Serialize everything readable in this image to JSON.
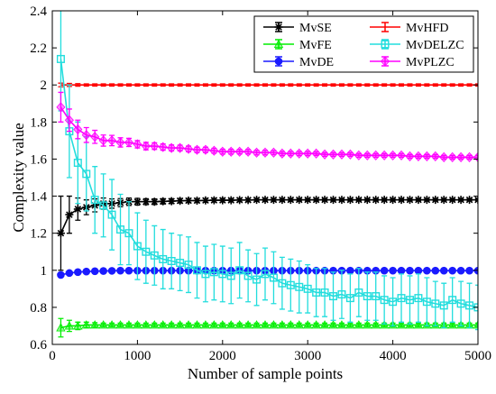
{
  "chart_data": {
    "type": "line",
    "title": "",
    "xlabel": "Number of sample points",
    "ylabel": "Complexity value",
    "xlim": [
      0,
      5000
    ],
    "ylim": [
      0.6,
      2.4
    ],
    "xticks": [
      0,
      1000,
      2000,
      3000,
      4000,
      5000
    ],
    "xtick_labels": [
      "0",
      "1000",
      "2000",
      "3000",
      "4000",
      "5000"
    ],
    "yticks": [
      0.6,
      0.8,
      1.0,
      1.2,
      1.4,
      1.6,
      1.8,
      2.0,
      2.2,
      2.4
    ],
    "ytick_labels": [
      "0.6",
      "0.8",
      "1",
      "1.2",
      "1.4",
      "1.6",
      "1.8",
      "2",
      "2.2",
      "2.4"
    ],
    "grid": false,
    "legend": "top-right",
    "error_bars": true,
    "x_start": 100,
    "x_step": 100,
    "series": [
      {
        "name": "MvSE",
        "color": "#000000",
        "marker": "star",
        "values": [
          1.2,
          1.3,
          1.33,
          1.34,
          1.35,
          1.36,
          1.36,
          1.365,
          1.37,
          1.37,
          1.37,
          1.37,
          1.372,
          1.373,
          1.375,
          1.376,
          1.376,
          1.377,
          1.378,
          1.378,
          1.378,
          1.379,
          1.379,
          1.38,
          1.38,
          1.38,
          1.38,
          1.38,
          1.38,
          1.38,
          1.38,
          1.38,
          1.38,
          1.38,
          1.38,
          1.38,
          1.38,
          1.38,
          1.38,
          1.38,
          1.38,
          1.38,
          1.38,
          1.38,
          1.38,
          1.38,
          1.38,
          1.38,
          1.38,
          1.38
        ],
        "errors": [
          0.2,
          0.1,
          0.06,
          0.04,
          0.035,
          0.03,
          0.025,
          0.022,
          0.02,
          0.018,
          0.016,
          0.015,
          0.014,
          0.013,
          0.012,
          0.011,
          0.01,
          0.01,
          0.01,
          0.01,
          0.009,
          0.009,
          0.009,
          0.008,
          0.008,
          0.008,
          0.008,
          0.008,
          0.007,
          0.007,
          0.007,
          0.007,
          0.007,
          0.007,
          0.006,
          0.006,
          0.006,
          0.006,
          0.006,
          0.006,
          0.006,
          0.006,
          0.005,
          0.005,
          0.005,
          0.005,
          0.005,
          0.005,
          0.005,
          0.005
        ]
      },
      {
        "name": "MvFE",
        "color": "#00ee00",
        "marker": "triangle",
        "values": [
          0.69,
          0.7,
          0.7,
          0.705,
          0.705,
          0.705,
          0.705,
          0.705,
          0.705,
          0.705,
          0.705,
          0.705,
          0.705,
          0.705,
          0.705,
          0.705,
          0.705,
          0.705,
          0.705,
          0.705,
          0.705,
          0.705,
          0.705,
          0.705,
          0.705,
          0.705,
          0.705,
          0.705,
          0.705,
          0.705,
          0.705,
          0.705,
          0.705,
          0.705,
          0.705,
          0.705,
          0.705,
          0.705,
          0.705,
          0.705,
          0.705,
          0.705,
          0.705,
          0.705,
          0.705,
          0.705,
          0.705,
          0.705,
          0.705,
          0.705
        ],
        "errors": [
          0.05,
          0.03,
          0.02,
          0.015,
          0.012,
          0.01,
          0.01,
          0.01,
          0.01,
          0.01,
          0.01,
          0.01,
          0.01,
          0.01,
          0.01,
          0.01,
          0.01,
          0.01,
          0.01,
          0.01,
          0.01,
          0.01,
          0.01,
          0.01,
          0.01,
          0.01,
          0.01,
          0.01,
          0.01,
          0.01,
          0.01,
          0.01,
          0.01,
          0.01,
          0.01,
          0.01,
          0.01,
          0.01,
          0.01,
          0.01,
          0.01,
          0.01,
          0.01,
          0.01,
          0.01,
          0.01,
          0.01,
          0.01,
          0.01,
          0.01
        ]
      },
      {
        "name": "MvDE",
        "color": "#1a1aff",
        "marker": "circle",
        "values": [
          0.975,
          0.985,
          0.99,
          0.993,
          0.995,
          0.996,
          0.997,
          0.998,
          0.998,
          0.998,
          0.998,
          0.998,
          0.998,
          0.998,
          0.998,
          0.998,
          0.998,
          0.998,
          0.998,
          0.998,
          0.998,
          0.998,
          0.998,
          0.998,
          0.998,
          0.998,
          0.998,
          0.998,
          0.998,
          0.998,
          0.998,
          0.998,
          0.998,
          0.998,
          0.998,
          0.998,
          0.998,
          0.998,
          0.998,
          0.998,
          0.998,
          0.998,
          0.998,
          0.998,
          0.998,
          0.998,
          0.998,
          0.998,
          0.998,
          0.998
        ],
        "errors": [
          0.01,
          0.008,
          0.006,
          0.005,
          0.004,
          0.004,
          0.003,
          0.003,
          0.003,
          0.003,
          0.003,
          0.003,
          0.003,
          0.003,
          0.003,
          0.003,
          0.003,
          0.003,
          0.003,
          0.003,
          0.003,
          0.003,
          0.003,
          0.003,
          0.003,
          0.003,
          0.003,
          0.003,
          0.003,
          0.003,
          0.003,
          0.003,
          0.003,
          0.003,
          0.003,
          0.003,
          0.003,
          0.003,
          0.003,
          0.003,
          0.003,
          0.003,
          0.003,
          0.003,
          0.003,
          0.003,
          0.003,
          0.003,
          0.003,
          0.003
        ]
      },
      {
        "name": "MvHFD",
        "color": "#ff0000",
        "marker": "none",
        "values": [
          2.0,
          2.0,
          2.0,
          2.0,
          2.0,
          2.0,
          2.0,
          2.0,
          2.0,
          2.0,
          2.0,
          2.0,
          2.0,
          2.0,
          2.0,
          2.0,
          2.0,
          2.0,
          2.0,
          2.0,
          2.0,
          2.0,
          2.0,
          2.0,
          2.0,
          2.0,
          2.0,
          2.0,
          2.0,
          2.0,
          2.0,
          2.0,
          2.0,
          2.0,
          2.0,
          2.0,
          2.0,
          2.0,
          2.0,
          2.0,
          2.0,
          2.0,
          2.0,
          2.0,
          2.0,
          2.0,
          2.0,
          2.0,
          2.0,
          2.0
        ],
        "errors": [
          0.01,
          0.008,
          0.007,
          0.006,
          0.006,
          0.006,
          0.006,
          0.006,
          0.006,
          0.006,
          0.006,
          0.006,
          0.006,
          0.006,
          0.006,
          0.006,
          0.006,
          0.006,
          0.006,
          0.006,
          0.006,
          0.006,
          0.006,
          0.006,
          0.006,
          0.006,
          0.006,
          0.006,
          0.006,
          0.006,
          0.006,
          0.006,
          0.006,
          0.006,
          0.006,
          0.006,
          0.006,
          0.006,
          0.006,
          0.006,
          0.006,
          0.006,
          0.006,
          0.006,
          0.006,
          0.006,
          0.006,
          0.006,
          0.006,
          0.006
        ]
      },
      {
        "name": "MvDELZC",
        "color": "#22dddd",
        "marker": "square",
        "values": [
          2.14,
          1.75,
          1.58,
          1.52,
          1.38,
          1.35,
          1.3,
          1.22,
          1.2,
          1.13,
          1.1,
          1.08,
          1.06,
          1.05,
          1.04,
          1.03,
          1.0,
          0.98,
          0.99,
          0.98,
          0.97,
          1.0,
          0.97,
          0.95,
          0.98,
          0.96,
          0.93,
          0.92,
          0.91,
          0.9,
          0.88,
          0.88,
          0.86,
          0.87,
          0.85,
          0.88,
          0.86,
          0.86,
          0.84,
          0.83,
          0.85,
          0.84,
          0.85,
          0.83,
          0.82,
          0.81,
          0.84,
          0.82,
          0.81,
          0.8
        ],
        "errors": [
          0.28,
          0.25,
          0.22,
          0.2,
          0.18,
          0.17,
          0.19,
          0.19,
          0.17,
          0.18,
          0.17,
          0.16,
          0.16,
          0.15,
          0.15,
          0.15,
          0.15,
          0.15,
          0.15,
          0.15,
          0.15,
          0.15,
          0.14,
          0.14,
          0.14,
          0.14,
          0.14,
          0.14,
          0.14,
          0.13,
          0.13,
          0.13,
          0.13,
          0.13,
          0.13,
          0.13,
          0.13,
          0.13,
          0.13,
          0.13,
          0.13,
          0.13,
          0.13,
          0.13,
          0.12,
          0.12,
          0.12,
          0.12,
          0.12,
          0.12
        ]
      },
      {
        "name": "MvPLZC",
        "color": "#ff00ff",
        "marker": "diamond",
        "values": [
          1.88,
          1.81,
          1.76,
          1.73,
          1.72,
          1.7,
          1.7,
          1.69,
          1.69,
          1.68,
          1.67,
          1.67,
          1.665,
          1.66,
          1.66,
          1.655,
          1.65,
          1.65,
          1.645,
          1.64,
          1.64,
          1.64,
          1.64,
          1.635,
          1.635,
          1.635,
          1.63,
          1.63,
          1.63,
          1.63,
          1.63,
          1.625,
          1.625,
          1.625,
          1.625,
          1.62,
          1.62,
          1.62,
          1.62,
          1.62,
          1.62,
          1.615,
          1.615,
          1.615,
          1.615,
          1.61,
          1.61,
          1.61,
          1.61,
          1.61
        ],
        "errors": [
          0.08,
          0.06,
          0.05,
          0.04,
          0.035,
          0.03,
          0.028,
          0.025,
          0.022,
          0.02,
          0.02,
          0.018,
          0.017,
          0.016,
          0.015,
          0.015,
          0.014,
          0.014,
          0.013,
          0.013,
          0.013,
          0.012,
          0.012,
          0.012,
          0.012,
          0.011,
          0.011,
          0.011,
          0.011,
          0.011,
          0.01,
          0.01,
          0.01,
          0.01,
          0.01,
          0.01,
          0.01,
          0.01,
          0.01,
          0.01,
          0.01,
          0.01,
          0.01,
          0.01,
          0.01,
          0.01,
          0.01,
          0.01,
          0.01,
          0.01
        ]
      }
    ]
  }
}
